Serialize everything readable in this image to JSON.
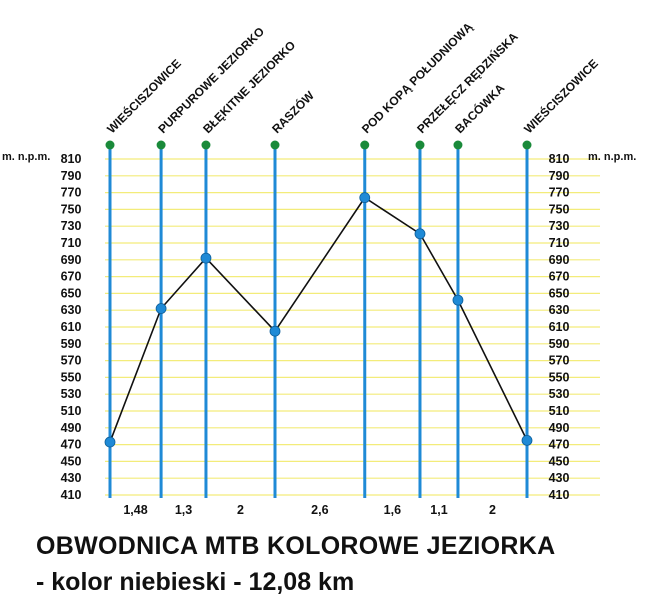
{
  "chart_data": {
    "type": "line",
    "title": "OBWODNICA MTB KOLOROWE JEZIORKA",
    "subtitle": "- kolor niebieski - 12,08 km",
    "ylabel_left": "m. n.p.m.",
    "ylabel_right": "m. n.p.m.",
    "ylim": [
      410,
      810
    ],
    "yticks": [
      810,
      790,
      770,
      750,
      730,
      710,
      690,
      670,
      650,
      630,
      610,
      590,
      570,
      550,
      530,
      510,
      490,
      470,
      450,
      430,
      410
    ],
    "grid": true,
    "points": [
      {
        "name": "WIEŚCISZOWICE",
        "km": 0,
        "elevation": 473
      },
      {
        "name": "PURPUROWE JEZIORKO",
        "km": 1.48,
        "elevation": 632
      },
      {
        "name": "BŁĘKITNE JEZIORKO",
        "km": 2.78,
        "elevation": 692
      },
      {
        "name": "RASZÓW",
        "km": 4.78,
        "elevation": 605
      },
      {
        "name": "POD KOPĄ POŁUDNIOWĄ",
        "km": 7.38,
        "elevation": 764
      },
      {
        "name": "PRZEŁĘCZ RĘDZIŃSKA",
        "km": 8.98,
        "elevation": 721
      },
      {
        "name": "BACÓWKA",
        "km": 10.08,
        "elevation": 642
      },
      {
        "name": "WIEŚCISZOWICE",
        "km": 12.08,
        "elevation": 475
      }
    ],
    "segments": [
      "1,48",
      "1,3",
      "2",
      "2,6",
      "1,6",
      "1,1",
      "2"
    ],
    "colors": {
      "station": "#1f8ad6",
      "grid": "#f3ec7a",
      "profile": "#111111",
      "top_marker": "#1a8a3a"
    }
  }
}
